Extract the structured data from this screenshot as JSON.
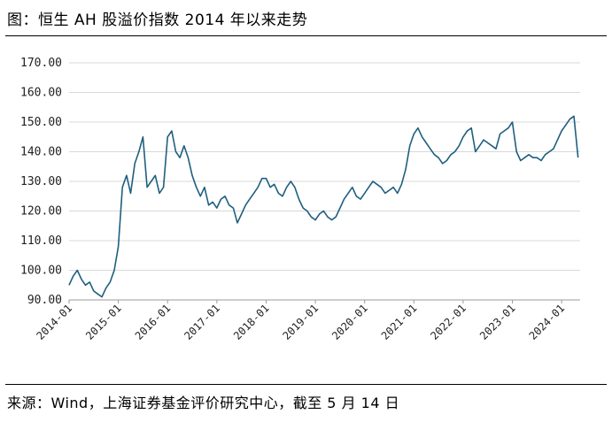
{
  "title": "图：恒生 AH 股溢价指数 2014 年以来走势",
  "source": "来源：Wind，上海证券基金评价研究中心，截至 5 月 14 日",
  "chart_data": {
    "type": "line",
    "title": "图：恒生 AH 股溢价指数 2014 年以来走势",
    "xlabel": "",
    "ylabel": "",
    "ylim": [
      90,
      170
    ],
    "yticks": [
      "90.00",
      "100.00",
      "110.00",
      "120.00",
      "130.00",
      "140.00",
      "150.00",
      "160.00",
      "170.00"
    ],
    "xticks": [
      "2014-01",
      "2015-01",
      "2016-01",
      "2017-01",
      "2018-01",
      "2019-01",
      "2020-01",
      "2021-01",
      "2022-01",
      "2023-01",
      "2024-01"
    ],
    "grid": "horizontal",
    "legend": "none",
    "line_color": "#1f5f7f",
    "series": [
      {
        "name": "",
        "x": [
          "2014-01",
          "2014-02",
          "2014-03",
          "2014-04",
          "2014-05",
          "2014-06",
          "2014-07",
          "2014-08",
          "2014-09",
          "2014-10",
          "2014-11",
          "2014-12",
          "2015-01",
          "2015-02",
          "2015-03",
          "2015-04",
          "2015-05",
          "2015-06",
          "2015-07",
          "2015-08",
          "2015-09",
          "2015-10",
          "2015-11",
          "2015-12",
          "2016-01",
          "2016-02",
          "2016-03",
          "2016-04",
          "2016-05",
          "2016-06",
          "2016-07",
          "2016-08",
          "2016-09",
          "2016-10",
          "2016-11",
          "2016-12",
          "2017-01",
          "2017-02",
          "2017-03",
          "2017-04",
          "2017-05",
          "2017-06",
          "2017-07",
          "2017-08",
          "2017-09",
          "2017-10",
          "2017-11",
          "2017-12",
          "2018-01",
          "2018-02",
          "2018-03",
          "2018-04",
          "2018-05",
          "2018-06",
          "2018-07",
          "2018-08",
          "2018-09",
          "2018-10",
          "2018-11",
          "2018-12",
          "2019-01",
          "2019-02",
          "2019-03",
          "2019-04",
          "2019-05",
          "2019-06",
          "2019-07",
          "2019-08",
          "2019-09",
          "2019-10",
          "2019-11",
          "2019-12",
          "2020-01",
          "2020-02",
          "2020-03",
          "2020-04",
          "2020-05",
          "2020-06",
          "2020-07",
          "2020-08",
          "2020-09",
          "2020-10",
          "2020-11",
          "2020-12",
          "2021-01",
          "2021-02",
          "2021-03",
          "2021-04",
          "2021-05",
          "2021-06",
          "2021-07",
          "2021-08",
          "2021-09",
          "2021-10",
          "2021-11",
          "2021-12",
          "2022-01",
          "2022-02",
          "2022-03",
          "2022-04",
          "2022-05",
          "2022-06",
          "2022-07",
          "2022-08",
          "2022-09",
          "2022-10",
          "2022-11",
          "2022-12",
          "2023-01",
          "2023-02",
          "2023-03",
          "2023-04",
          "2023-05",
          "2023-06",
          "2023-07",
          "2023-08",
          "2023-09",
          "2023-10",
          "2023-11",
          "2023-12",
          "2024-01",
          "2024-02",
          "2024-03",
          "2024-04",
          "2024-05"
        ],
        "values": [
          95,
          98,
          100,
          97,
          95,
          96,
          93,
          92,
          91,
          94,
          96,
          100,
          108,
          128,
          132,
          126,
          136,
          140,
          145,
          128,
          130,
          132,
          126,
          128,
          145,
          147,
          140,
          138,
          142,
          138,
          132,
          128,
          125,
          128,
          122,
          123,
          121,
          124,
          125,
          122,
          121,
          116,
          119,
          122,
          124,
          126,
          128,
          131,
          131,
          128,
          129,
          126,
          125,
          128,
          130,
          128,
          124,
          121,
          120,
          118,
          117,
          119,
          120,
          118,
          117,
          118,
          121,
          124,
          126,
          128,
          125,
          124,
          126,
          128,
          130,
          129,
          128,
          126,
          127,
          128,
          126,
          129,
          134,
          142,
          146,
          148,
          145,
          143,
          141,
          139,
          138,
          136,
          137,
          139,
          140,
          142,
          145,
          147,
          148,
          140,
          142,
          144,
          143,
          142,
          141,
          146,
          147,
          148,
          150,
          140,
          137,
          138,
          139,
          138,
          138,
          137,
          139,
          140,
          141,
          144,
          147,
          149,
          151,
          152,
          138
        ]
      }
    ]
  }
}
